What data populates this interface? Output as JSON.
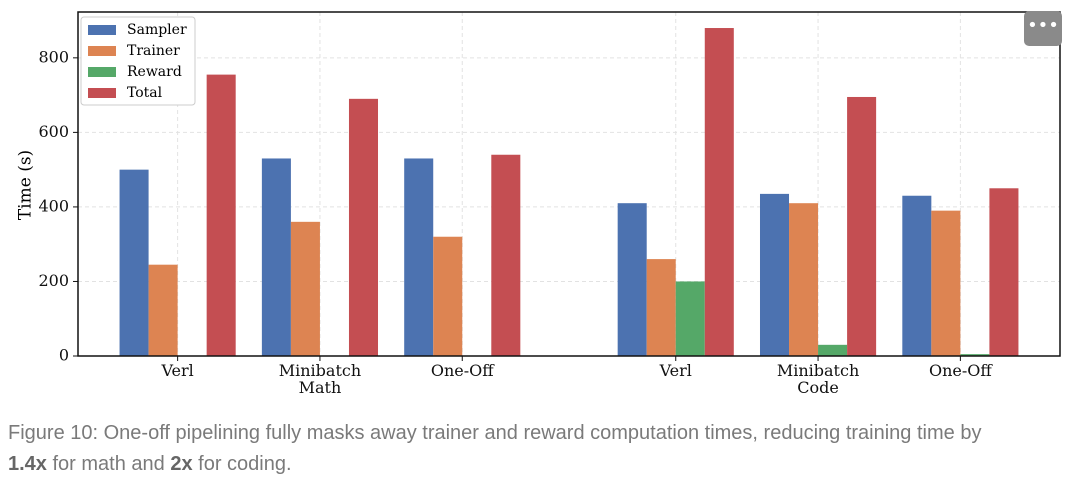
{
  "chart_data": {
    "type": "bar",
    "y_label": "Time (s)",
    "x": [
      0,
      1,
      2,
      3.5,
      4.5,
      5.5
    ],
    "xlim": [
      -0.7,
      6.2
    ],
    "xticks": [
      {
        "value": 0,
        "label": "Verl"
      },
      {
        "value": 1,
        "label": "Minibatch\nMath"
      },
      {
        "value": 2,
        "label": "One-Off"
      },
      {
        "value": 3.5,
        "label": "Verl"
      },
      {
        "value": 4.5,
        "label": "Minibatch\nCode"
      },
      {
        "value": 5.5,
        "label": "One-Off"
      }
    ],
    "ylim": [
      0,
      923
    ],
    "yticks": [
      0,
      200,
      400,
      600,
      800
    ],
    "grid": true,
    "legend": "upper left",
    "series": [
      {
        "name": "Sampler",
        "color": "#4c72b0",
        "values": [
          500,
          530,
          530,
          410,
          435,
          430
        ]
      },
      {
        "name": "Trainer",
        "color": "#dd8452",
        "values": [
          245,
          360,
          320,
          260,
          410,
          390
        ]
      },
      {
        "name": "Reward",
        "color": "#55a868",
        "values": [
          0,
          0,
          0,
          200,
          30,
          5
        ]
      },
      {
        "name": "Total",
        "color": "#c44e52",
        "values": [
          755,
          690,
          540,
          880,
          695,
          450
        ]
      }
    ]
  },
  "caption": [
    "Figure 10: One-off pipelining fully masks away trainer and reward computation times, reducing training time by ",
    "1.4x",
    " for math and ",
    "2x",
    " for coding."
  ]
}
